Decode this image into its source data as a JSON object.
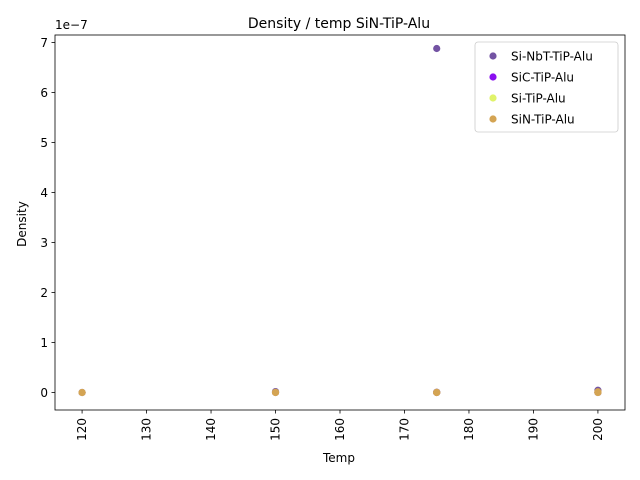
{
  "chart_data": {
    "type": "scatter",
    "title": "Density / temp SiN-TiP-Alu",
    "xlabel": "Temp",
    "ylabel": "Density",
    "y_offset_label": "1e−7",
    "y_scale_exponent": -7,
    "xlim": [
      115.8,
      204.2
    ],
    "ylim": [
      -3.5e-08,
      7.15e-07
    ],
    "x_ticks": [
      120,
      130,
      140,
      150,
      160,
      170,
      180,
      190,
      200
    ],
    "x_tick_labels": [
      "120",
      "130",
      "140",
      "150",
      "160",
      "170",
      "180",
      "190",
      "200"
    ],
    "x_tick_rotation": 90,
    "y_ticks": [
      0,
      1e-07,
      2e-07,
      3e-07,
      4e-07,
      5e-07,
      6e-07,
      7e-07
    ],
    "y_tick_labels": [
      "0",
      "1",
      "2",
      "3",
      "4",
      "5",
      "6",
      "7"
    ],
    "grid": false,
    "legend_position": "top-right",
    "series": [
      {
        "name": "Si-NbT-TiP-Alu",
        "color": "#7353a3",
        "points": [
          [
            120,
            0
          ],
          [
            150,
            1.8e-09
          ],
          [
            175,
            6.88e-07
          ],
          [
            175,
            6e-10
          ],
          [
            175,
            1e-11
          ],
          [
            200,
            4.5e-09
          ],
          [
            200,
            1e-10
          ]
        ]
      },
      {
        "name": "SiC-TiP-Alu",
        "color": "#8a0ff0",
        "points": [
          [
            120,
            0
          ],
          [
            150,
            1e-11
          ],
          [
            175,
            1e-11
          ],
          [
            200,
            1e-11
          ]
        ]
      },
      {
        "name": "Si-TiP-Alu",
        "color": "#e0f36a",
        "points": [
          [
            120,
            0
          ],
          [
            150,
            0
          ],
          [
            175,
            0
          ],
          [
            200,
            0
          ]
        ]
      },
      {
        "name": "SiN-TiP-Alu",
        "color": "#d4a453",
        "points": [
          [
            120,
            0
          ],
          [
            150,
            4e-10
          ],
          [
            150,
            0
          ],
          [
            175,
            2e-10
          ],
          [
            175,
            0
          ],
          [
            200,
            1.5e-09
          ],
          [
            200,
            8e-10
          ],
          [
            200,
            1e-10
          ]
        ]
      }
    ]
  }
}
